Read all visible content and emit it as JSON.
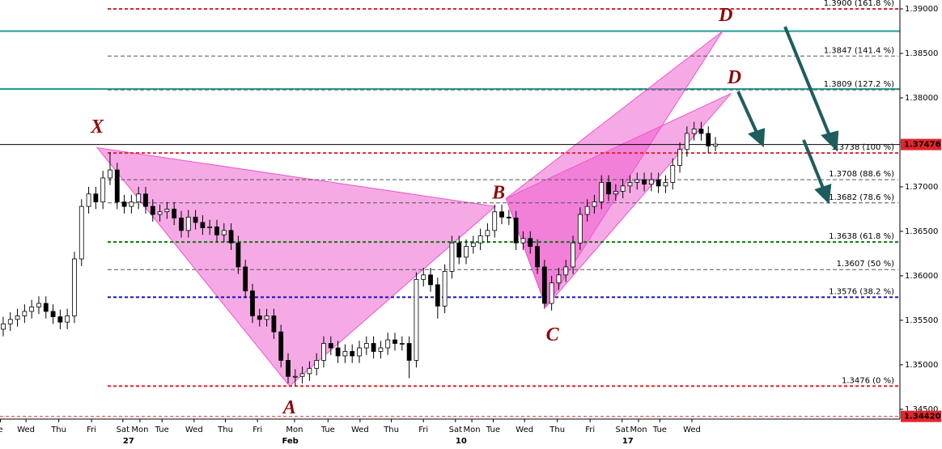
{
  "chart_data": {
    "type": "candlestick",
    "ohlc": [
      [
        1.354,
        1.3554,
        1.3532,
        1.3546
      ],
      [
        1.3546,
        1.3559,
        1.3538,
        1.3551
      ],
      [
        1.3551,
        1.3563,
        1.3543,
        1.3555
      ],
      [
        1.3555,
        1.3568,
        1.3547,
        1.356
      ],
      [
        1.356,
        1.3573,
        1.3552,
        1.3565
      ],
      [
        1.3565,
        1.3577,
        1.3557,
        1.3569
      ],
      [
        1.3569,
        1.3577,
        1.3552,
        1.356
      ],
      [
        1.356,
        1.3568,
        1.3546,
        1.3554
      ],
      [
        1.3554,
        1.3562,
        1.354,
        1.3548
      ],
      [
        1.3548,
        1.3563,
        1.354,
        1.3555
      ],
      [
        1.3555,
        1.3627,
        1.3547,
        1.3619
      ],
      [
        1.3619,
        1.3686,
        1.3611,
        1.3678
      ],
      [
        1.3678,
        1.37,
        1.367,
        1.3692
      ],
      [
        1.3692,
        1.37,
        1.3675,
        1.3683
      ],
      [
        1.3683,
        1.3718,
        1.3675,
        1.371
      ],
      [
        1.371,
        1.3739,
        1.3702,
        1.3719
      ],
      [
        1.3719,
        1.3727,
        1.3675,
        1.3683
      ],
      [
        1.3683,
        1.3691,
        1.367,
        1.3678
      ],
      [
        1.3678,
        1.3691,
        1.367,
        1.3683
      ],
      [
        1.3683,
        1.37,
        1.3675,
        1.3692
      ],
      [
        1.3692,
        1.37,
        1.367,
        1.3678
      ],
      [
        1.3678,
        1.3686,
        1.3661,
        1.3669
      ],
      [
        1.3669,
        1.368,
        1.3661,
        1.3672
      ],
      [
        1.3672,
        1.3683,
        1.3664,
        1.3675
      ],
      [
        1.3675,
        1.3683,
        1.3657,
        1.3665
      ],
      [
        1.3665,
        1.3673,
        1.3643,
        1.3651
      ],
      [
        1.3651,
        1.3674,
        1.3643,
        1.3666
      ],
      [
        1.3666,
        1.3674,
        1.3652,
        1.366
      ],
      [
        1.366,
        1.3668,
        1.3646,
        1.3654
      ],
      [
        1.3654,
        1.3663,
        1.3646,
        1.3655
      ],
      [
        1.3655,
        1.3663,
        1.3638,
        1.3646
      ],
      [
        1.3646,
        1.3659,
        1.3638,
        1.3651
      ],
      [
        1.3651,
        1.3659,
        1.3629,
        1.3637
      ],
      [
        1.3637,
        1.3645,
        1.3602,
        1.361
      ],
      [
        1.361,
        1.3618,
        1.3575,
        1.3583
      ],
      [
        1.3583,
        1.3591,
        1.3547,
        1.3555
      ],
      [
        1.3555,
        1.3563,
        1.3543,
        1.3551
      ],
      [
        1.3551,
        1.3563,
        1.3543,
        1.3555
      ],
      [
        1.3555,
        1.3563,
        1.3529,
        1.3537
      ],
      [
        1.3537,
        1.3545,
        1.3497,
        1.3505
      ],
      [
        1.3505,
        1.3513,
        1.3479,
        1.3487
      ],
      [
        1.3487,
        1.3495,
        1.3476,
        1.3487
      ],
      [
        1.3487,
        1.3498,
        1.3479,
        1.349
      ],
      [
        1.349,
        1.3504,
        1.3482,
        1.3496
      ],
      [
        1.3496,
        1.3513,
        1.3488,
        1.3505
      ],
      [
        1.3505,
        1.3532,
        1.3497,
        1.3524
      ],
      [
        1.3524,
        1.3532,
        1.3511,
        1.3519
      ],
      [
        1.3519,
        1.3527,
        1.3502,
        1.351
      ],
      [
        1.351,
        1.3523,
        1.3502,
        1.3515
      ],
      [
        1.3515,
        1.3523,
        1.3502,
        1.351
      ],
      [
        1.351,
        1.3527,
        1.3502,
        1.3519
      ],
      [
        1.3519,
        1.3532,
        1.3511,
        1.3524
      ],
      [
        1.3524,
        1.3532,
        1.3507,
        1.3515
      ],
      [
        1.3515,
        1.3527,
        1.3507,
        1.3519
      ],
      [
        1.3519,
        1.3536,
        1.3511,
        1.3528
      ],
      [
        1.3528,
        1.3536,
        1.3516,
        1.3524
      ],
      [
        1.3524,
        1.3532,
        1.3516,
        1.3524
      ],
      [
        1.3524,
        1.3532,
        1.3485,
        1.3505
      ],
      [
        1.3505,
        1.3604,
        1.3497,
        1.3596
      ],
      [
        1.3596,
        1.3609,
        1.3588,
        1.3601
      ],
      [
        1.3601,
        1.3609,
        1.3582,
        1.359
      ],
      [
        1.359,
        1.3598,
        1.3552,
        1.3566
      ],
      [
        1.3566,
        1.3613,
        1.3558,
        1.3605
      ],
      [
        1.3605,
        1.3645,
        1.3597,
        1.3637
      ],
      [
        1.3637,
        1.3645,
        1.3613,
        1.3621
      ],
      [
        1.3621,
        1.3641,
        1.3613,
        1.3633
      ],
      [
        1.3633,
        1.3645,
        1.3625,
        1.3637
      ],
      [
        1.3637,
        1.3653,
        1.3629,
        1.3645
      ],
      [
        1.3645,
        1.3659,
        1.3637,
        1.3651
      ],
      [
        1.3651,
        1.368,
        1.3643,
        1.3672
      ],
      [
        1.3672,
        1.368,
        1.3658,
        1.3666
      ],
      [
        1.3666,
        1.3674,
        1.3657,
        1.3665
      ],
      [
        1.3665,
        1.3673,
        1.3629,
        1.3637
      ],
      [
        1.3637,
        1.365,
        1.3629,
        1.3642
      ],
      [
        1.3642,
        1.365,
        1.3625,
        1.3633
      ],
      [
        1.3633,
        1.3641,
        1.3602,
        1.361
      ],
      [
        1.361,
        1.3618,
        1.3563,
        1.3569
      ],
      [
        1.3569,
        1.36,
        1.3561,
        1.3592
      ],
      [
        1.3592,
        1.3609,
        1.3584,
        1.3601
      ],
      [
        1.3601,
        1.3618,
        1.3593,
        1.361
      ],
      [
        1.361,
        1.3645,
        1.3602,
        1.3637
      ],
      [
        1.3637,
        1.3677,
        1.3629,
        1.3669
      ],
      [
        1.3669,
        1.3686,
        1.3661,
        1.3678
      ],
      [
        1.3678,
        1.3691,
        1.367,
        1.3683
      ],
      [
        1.3683,
        1.3713,
        1.3675,
        1.3705
      ],
      [
        1.3705,
        1.3713,
        1.3684,
        1.3692
      ],
      [
        1.3692,
        1.3703,
        1.3684,
        1.3695
      ],
      [
        1.3695,
        1.3709,
        1.3687,
        1.3701
      ],
      [
        1.3701,
        1.3713,
        1.3693,
        1.3705
      ],
      [
        1.3705,
        1.3716,
        1.3697,
        1.3708
      ],
      [
        1.3708,
        1.3716,
        1.3695,
        1.3703
      ],
      [
        1.3703,
        1.3716,
        1.3695,
        1.3708
      ],
      [
        1.3708,
        1.3716,
        1.3693,
        1.3701
      ],
      [
        1.3701,
        1.3713,
        1.3693,
        1.3705
      ],
      [
        1.3705,
        1.3732,
        1.3697,
        1.3724
      ],
      [
        1.3724,
        1.375,
        1.3716,
        1.3742
      ],
      [
        1.3742,
        1.3768,
        1.3734,
        1.376
      ],
      [
        1.376,
        1.3773,
        1.3752,
        1.3765
      ],
      [
        1.3765,
        1.3773,
        1.3752,
        1.376
      ],
      [
        1.376,
        1.3768,
        1.3738,
        1.3746
      ],
      [
        1.3746,
        1.3756,
        1.374,
        1.3748
      ]
    ],
    "up_color": "#ffffff",
    "down_color": "#000000",
    "xlim": [
      -0.45,
      125.9
    ],
    "xticks": [
      {
        "value": -0.4,
        "label": "e"
      },
      {
        "value": 3.2,
        "label": "Wed"
      },
      {
        "value": 7.8,
        "label": "Thu"
      },
      {
        "value": 12.4,
        "label": "Fri"
      },
      {
        "value": 16.8,
        "label": "Sat"
      },
      {
        "value": 19.2,
        "label": "Mon"
      },
      {
        "value": 22.3,
        "label": "Tue"
      },
      {
        "value": 26.8,
        "label": "Wed"
      },
      {
        "value": 31.2,
        "label": "Thu"
      },
      {
        "value": 35.7,
        "label": "Fri"
      },
      {
        "value": 40.9,
        "label": "Mon"
      },
      {
        "value": 45.6,
        "label": "Tue"
      },
      {
        "value": 50.1,
        "label": "Wed"
      },
      {
        "value": 54.5,
        "label": "Thu"
      },
      {
        "value": 59,
        "label": "Fri"
      },
      {
        "value": 63.5,
        "label": "Sat"
      },
      {
        "value": 65.8,
        "label": "Mon"
      },
      {
        "value": 68.8,
        "label": "Tue"
      },
      {
        "value": 73.2,
        "label": "Wed"
      },
      {
        "value": 77.8,
        "label": "Thu"
      },
      {
        "value": 82.4,
        "label": "Fri"
      },
      {
        "value": 86.9,
        "label": "Sat"
      },
      {
        "value": 89.2,
        "label": "Mon"
      },
      {
        "value": 92.2,
        "label": "Tue"
      },
      {
        "value": 96.7,
        "label": "Wed"
      }
    ],
    "xticks_week": [
      {
        "value": 17.6,
        "label": "27"
      },
      {
        "value": 40.3,
        "label": "Feb"
      },
      {
        "value": 64.3,
        "label": "10"
      },
      {
        "value": 87.7,
        "label": "17"
      }
    ],
    "ylim": [
      1.3439,
      1.391
    ],
    "yticks": [
      {
        "value": 1.39,
        "label": "1.39000"
      },
      {
        "value": 1.385,
        "label": "1.38500"
      },
      {
        "value": 1.38,
        "label": "1.38000"
      },
      {
        "value": 1.375,
        "label": "1.37500"
      },
      {
        "value": 1.37,
        "label": "1.37000"
      },
      {
        "value": 1.365,
        "label": "1.36500"
      },
      {
        "value": 1.36,
        "label": "1.36000"
      },
      {
        "value": 1.355,
        "label": "1.35500"
      },
      {
        "value": 1.35,
        "label": "1.35000"
      },
      {
        "value": 1.345,
        "label": "1.34500"
      }
    ],
    "fib_levels": [
      {
        "value": 1.39,
        "label": "1.3900 (161.8 %)",
        "color": "#e3242b"
      },
      {
        "value": 1.3847,
        "label": "1.3847 (141.4 %)",
        "color": "#555555"
      },
      {
        "value": 1.3809,
        "label": "1.3809 (127.2 %)",
        "color": "#555555"
      },
      {
        "value": 1.3738,
        "label": "1.3738 (100 %)",
        "color": "#e3242b"
      },
      {
        "value": 1.3708,
        "label": "1.3708 (88.6 %)",
        "color": "#555555"
      },
      {
        "value": 1.3682,
        "label": "1.3682 (78.6 %)",
        "color": "#555555"
      },
      {
        "value": 1.3638,
        "label": "1.3638 (61.8 %)",
        "color": "#0a7a0a"
      },
      {
        "value": 1.3607,
        "label": "1.3607 (50 %)",
        "color": "#555555"
      },
      {
        "value": 1.3576,
        "label": "1.3576 (38.2 %)",
        "color": "#1010d0"
      },
      {
        "value": 1.3476,
        "label": "1.3476 (0 %)",
        "color": "#e3242b"
      }
    ],
    "lines": [
      {
        "value": 1.3875,
        "color": "#1f9e94"
      },
      {
        "value": 1.381,
        "color": "#1f9e94"
      }
    ],
    "last_price": 1.37476,
    "bottom_level": {
      "value": 1.3442,
      "label": "1.34420"
    },
    "pattern_color": "#ee55cc",
    "shapes": [
      {
        "x": [
          13.2,
          40.2,
          69.1
        ],
        "y": [
          1.3744,
          1.3476,
          1.3678
        ]
      },
      {
        "x": [
          70.6,
          76.2,
          101
        ],
        "y": [
          1.3687,
          1.3565,
          1.3875
        ]
      },
      {
        "x": [
          70.6,
          76.2,
          102.2
        ],
        "y": [
          1.3687,
          1.3565,
          1.3805
        ]
      }
    ],
    "pattern_labels": [
      {
        "text": "X",
        "x": 13.2,
        "y": 1.3744
      },
      {
        "text": "A",
        "x": 40.2,
        "y": 1.3476
      },
      {
        "text": "B",
        "x": 69.1,
        "y": 1.3678
      },
      {
        "text": "C",
        "x": 76.2,
        "y": 1.3565
      },
      {
        "text": "D",
        "x": 101,
        "y": 1.3875
      },
      {
        "text": "D",
        "x": 102.2,
        "y": 1.3805
      }
    ]
  }
}
